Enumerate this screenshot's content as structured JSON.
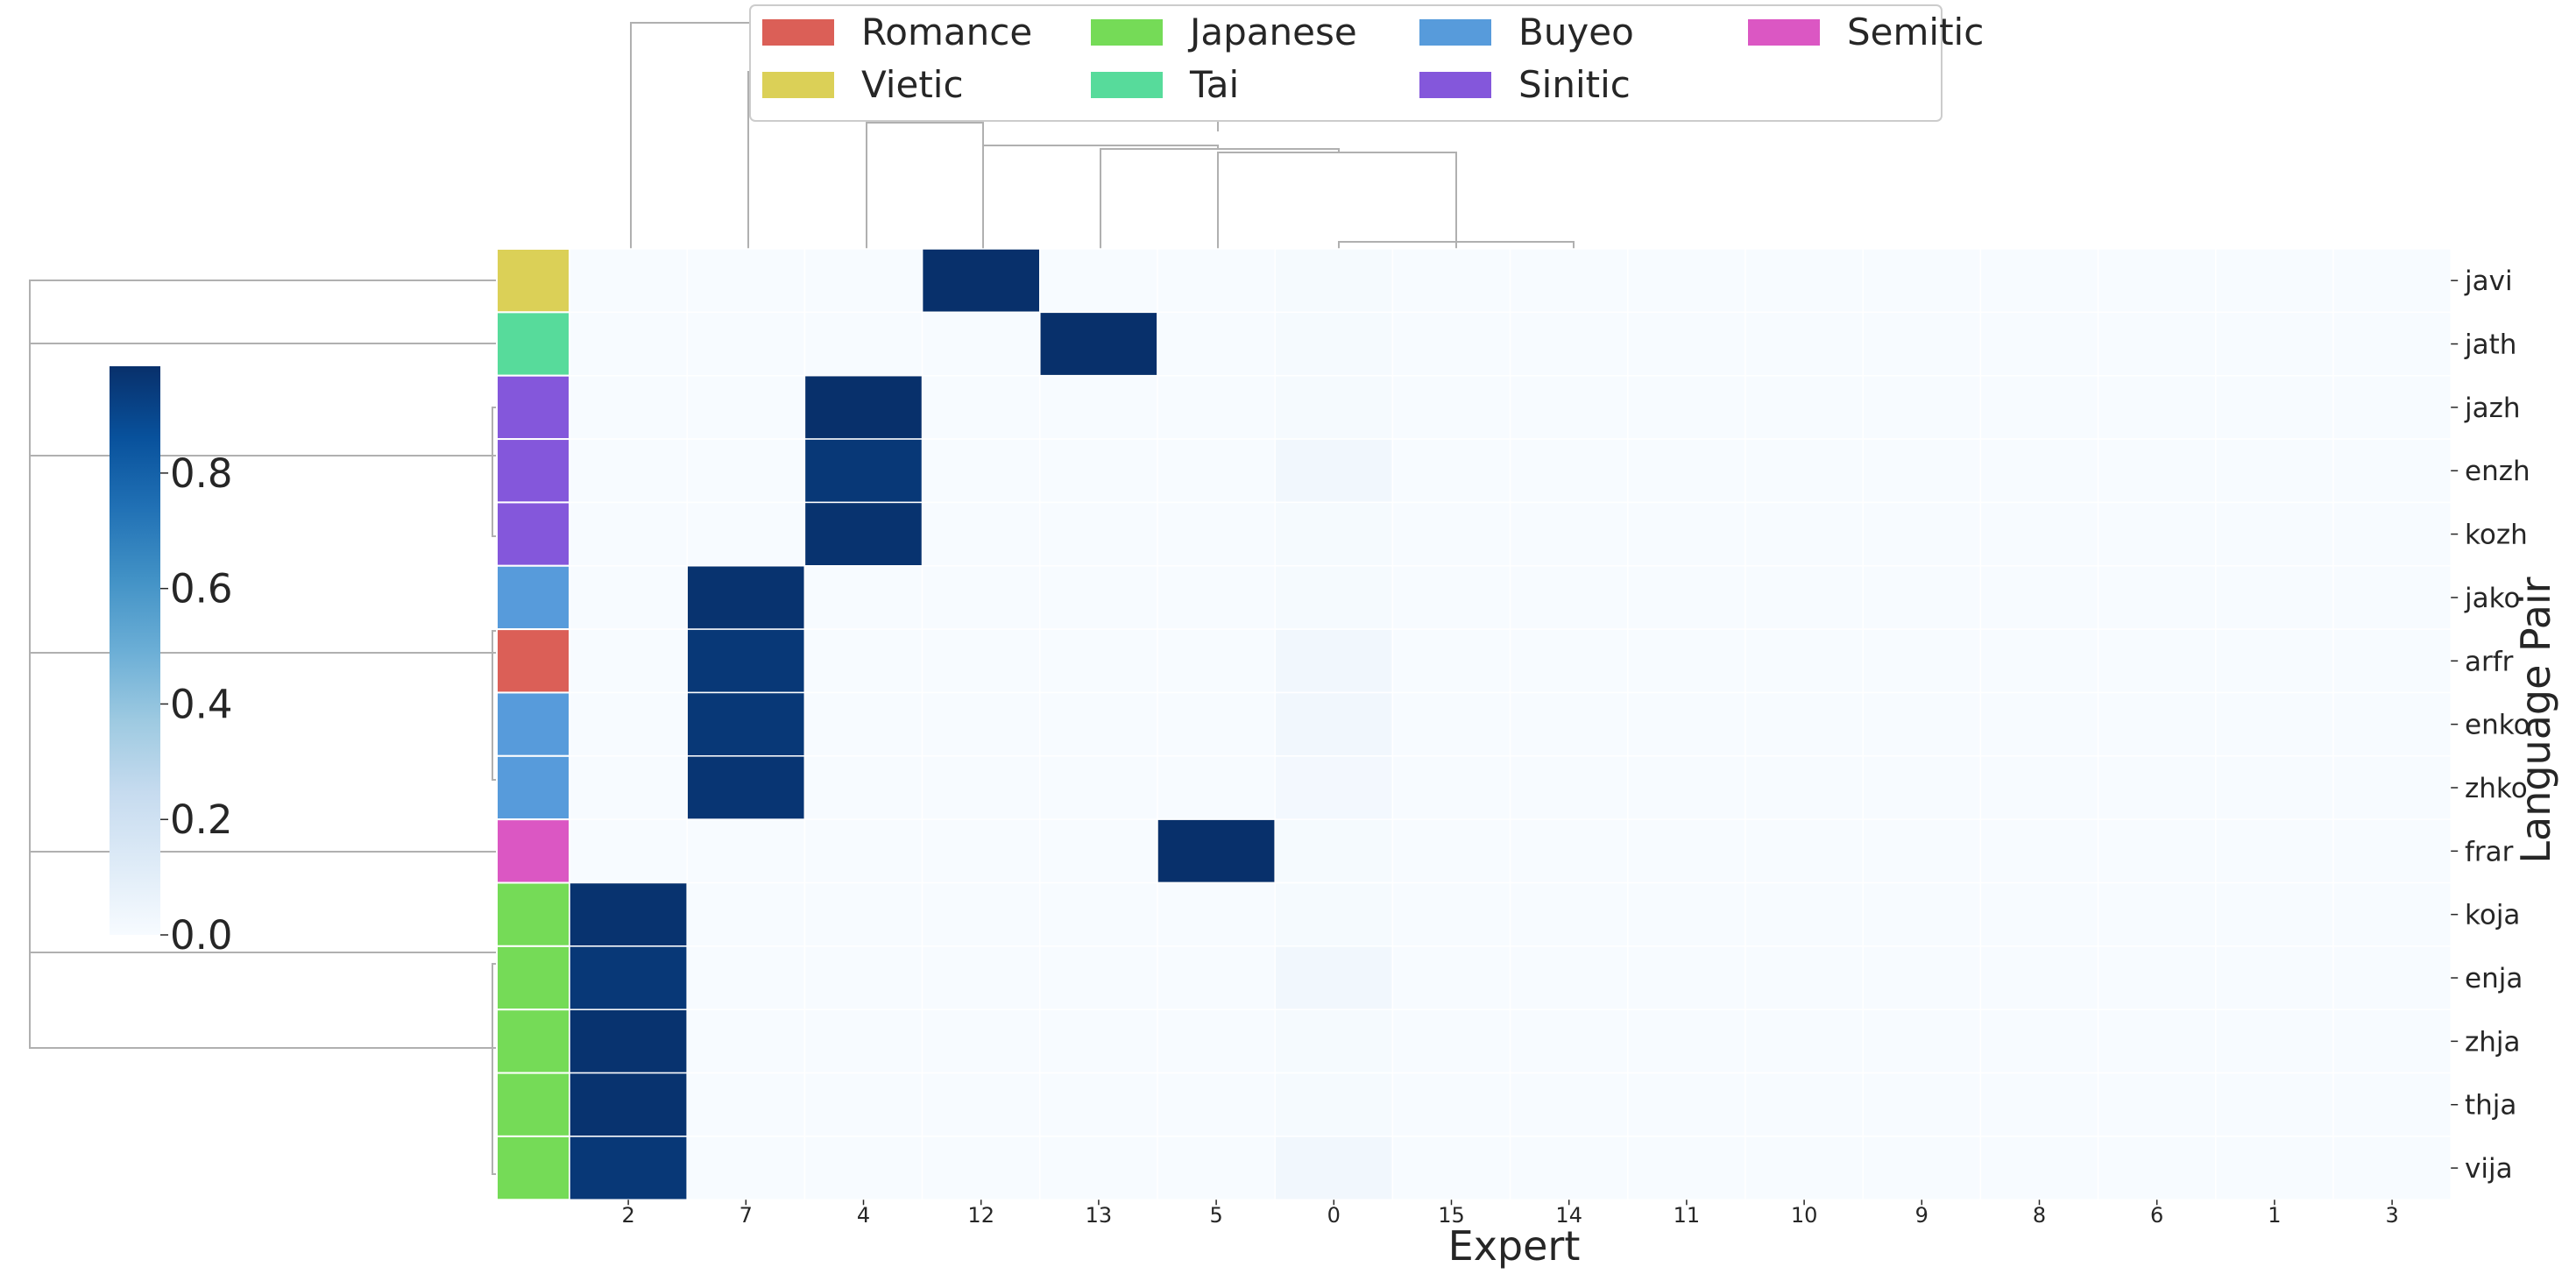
{
  "chart_data": {
    "type": "heatmap",
    "title": "",
    "xlabel": "Expert",
    "ylabel": "Language Pair",
    "x_categories": [
      "2",
      "7",
      "4",
      "12",
      "13",
      "5",
      "0",
      "15",
      "14",
      "11",
      "10",
      "9",
      "8",
      "6",
      "1",
      "3"
    ],
    "y_categories": [
      "javi",
      "jath",
      "jazh",
      "enzh",
      "kozh",
      "jako",
      "arfr",
      "enko",
      "zhko",
      "frar",
      "koja",
      "enja",
      "zhja",
      "thja",
      "vija"
    ],
    "row_families": [
      "Vietic",
      "Tai",
      "Sinitic",
      "Sinitic",
      "Sinitic",
      "Buyeo",
      "Romance",
      "Buyeo",
      "Buyeo",
      "Semitic",
      "Japanese",
      "Japanese",
      "Japanese",
      "Japanese",
      "Japanese"
    ],
    "values": [
      [
        0.0,
        0.0,
        0.0,
        1.0,
        0.0,
        0.0,
        0.01,
        0.0,
        0.0,
        0.0,
        0.0,
        0.0,
        0.0,
        0.0,
        0.0,
        0.0
      ],
      [
        0.0,
        0.0,
        0.0,
        0.0,
        1.0,
        0.0,
        0.01,
        0.0,
        0.0,
        0.0,
        0.0,
        0.0,
        0.0,
        0.0,
        0.0,
        0.0
      ],
      [
        0.0,
        0.0,
        1.0,
        0.0,
        0.0,
        0.0,
        0.01,
        0.0,
        0.0,
        0.0,
        0.0,
        0.0,
        0.0,
        0.0,
        0.0,
        0.0
      ],
      [
        0.0,
        0.0,
        0.97,
        0.0,
        0.0,
        0.0,
        0.03,
        0.0,
        0.0,
        0.0,
        0.0,
        0.0,
        0.0,
        0.0,
        0.0,
        0.0
      ],
      [
        0.0,
        0.0,
        0.99,
        0.0,
        0.0,
        0.0,
        0.01,
        0.0,
        0.0,
        0.0,
        0.0,
        0.0,
        0.0,
        0.0,
        0.0,
        0.0
      ],
      [
        0.0,
        0.99,
        0.0,
        0.0,
        0.0,
        0.0,
        0.01,
        0.0,
        0.0,
        0.0,
        0.0,
        0.0,
        0.0,
        0.0,
        0.0,
        0.0
      ],
      [
        0.0,
        0.97,
        0.0,
        0.0,
        0.0,
        0.0,
        0.03,
        0.0,
        0.0,
        0.0,
        0.0,
        0.0,
        0.0,
        0.0,
        0.0,
        0.0
      ],
      [
        0.0,
        0.97,
        0.0,
        0.0,
        0.0,
        0.0,
        0.03,
        0.0,
        0.0,
        0.0,
        0.0,
        0.0,
        0.0,
        0.0,
        0.0,
        0.0
      ],
      [
        0.0,
        0.98,
        0.0,
        0.0,
        0.0,
        0.0,
        0.02,
        0.0,
        0.0,
        0.0,
        0.0,
        0.0,
        0.0,
        0.0,
        0.0,
        0.0
      ],
      [
        0.0,
        0.0,
        0.0,
        0.0,
        0.0,
        1.0,
        0.01,
        0.0,
        0.0,
        0.0,
        0.0,
        0.0,
        0.0,
        0.0,
        0.0,
        0.0
      ],
      [
        0.99,
        0.0,
        0.0,
        0.0,
        0.0,
        0.0,
        0.01,
        0.0,
        0.0,
        0.0,
        0.0,
        0.0,
        0.0,
        0.0,
        0.0,
        0.0
      ],
      [
        0.97,
        0.0,
        0.0,
        0.0,
        0.0,
        0.0,
        0.03,
        0.0,
        0.0,
        0.0,
        0.0,
        0.0,
        0.0,
        0.0,
        0.0,
        0.0
      ],
      [
        0.99,
        0.0,
        0.0,
        0.0,
        0.0,
        0.0,
        0.01,
        0.0,
        0.0,
        0.0,
        0.0,
        0.0,
        0.0,
        0.0,
        0.0,
        0.0
      ],
      [
        0.99,
        0.0,
        0.0,
        0.0,
        0.0,
        0.0,
        0.01,
        0.0,
        0.0,
        0.0,
        0.0,
        0.0,
        0.0,
        0.0,
        0.0,
        0.0
      ],
      [
        0.97,
        0.0,
        0.0,
        0.0,
        0.0,
        0.0,
        0.03,
        0.0,
        0.0,
        0.0,
        0.0,
        0.0,
        0.0,
        0.0,
        0.0,
        0.0
      ]
    ],
    "colormap": "Blues",
    "value_range": [
      0,
      1
    ],
    "colorbar_ticks": [
      "0.0",
      "0.2",
      "0.4",
      "0.6",
      "0.8"
    ],
    "legend": {
      "placement": "top",
      "entries": [
        {
          "label": "Romance",
          "color": "#db5f57"
        },
        {
          "label": "Vietic",
          "color": "#dbd057"
        },
        {
          "label": "Japanese",
          "color": "#75db57"
        },
        {
          "label": "Tai",
          "color": "#57db9b"
        },
        {
          "label": "Buyeo",
          "color": "#579bdb"
        },
        {
          "label": "Sinitic",
          "color": "#8457db"
        },
        {
          "label": "Semitic",
          "color": "#db57c3"
        }
      ]
    },
    "row_dendrogram": true,
    "col_dendrogram": true,
    "grid": true
  }
}
